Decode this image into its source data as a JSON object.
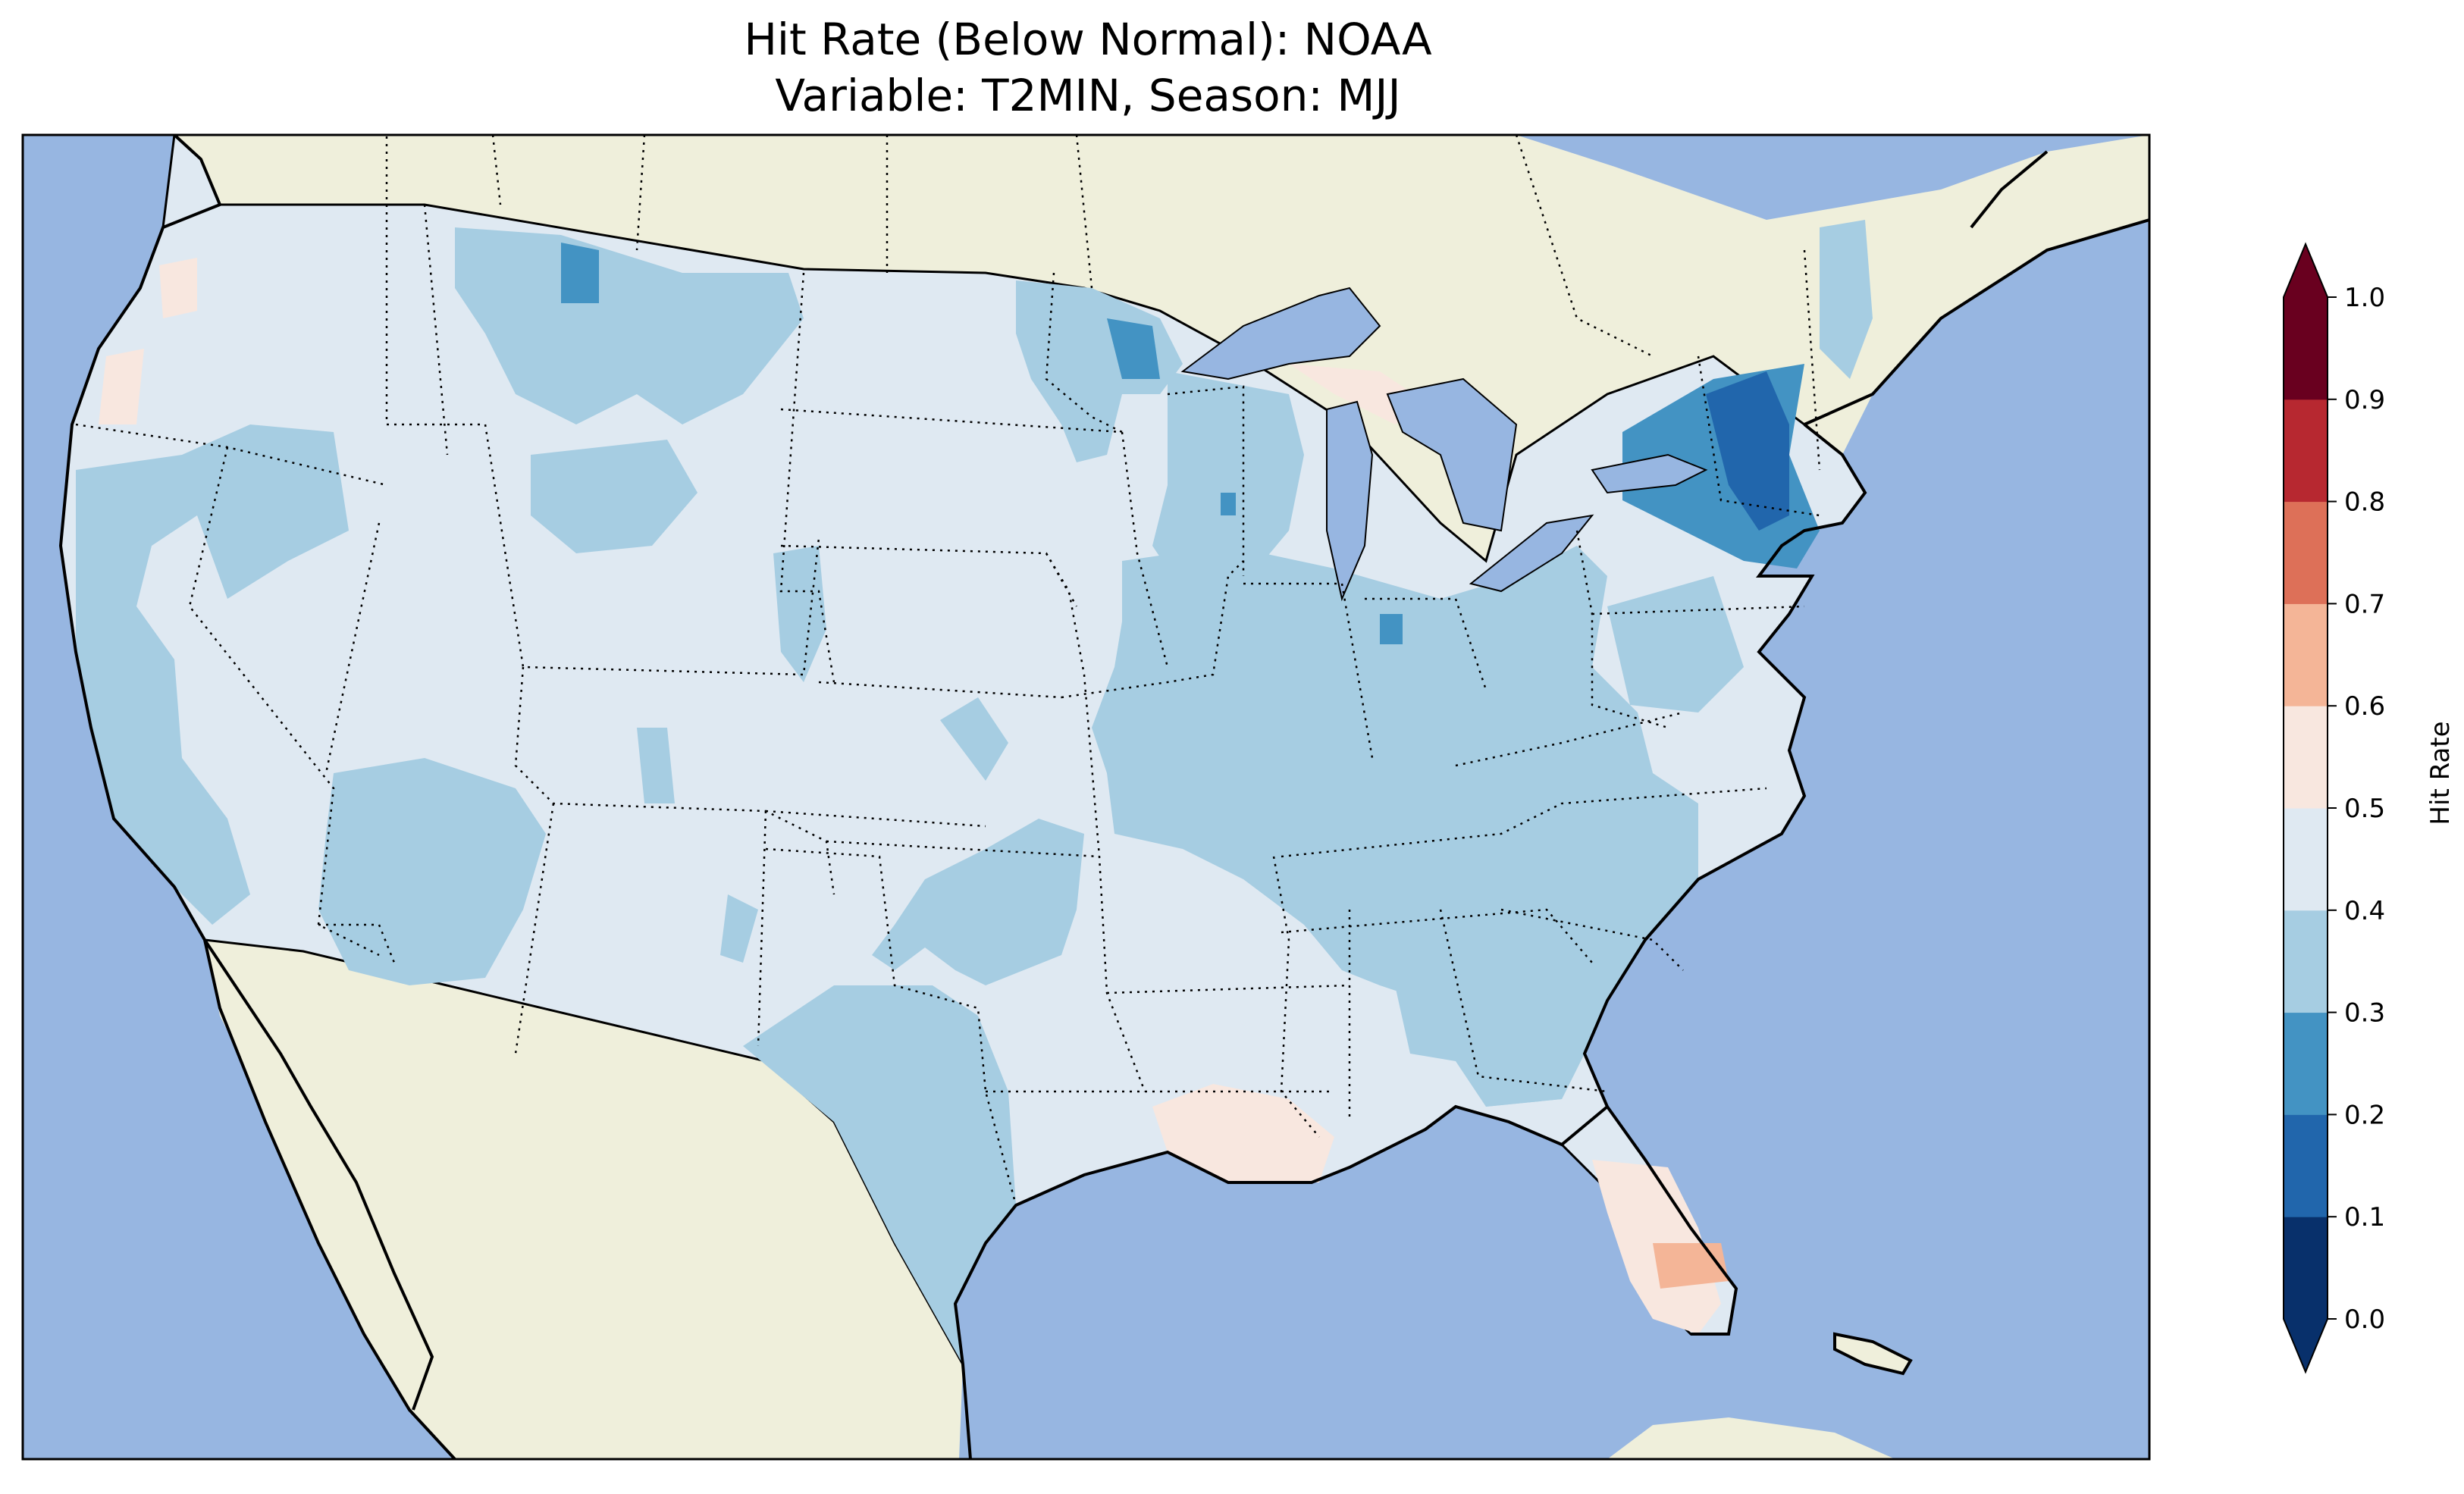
{
  "title": {
    "line1": "Hit Rate (Below Normal): NOAA",
    "line2": "Variable: T2MIN, Season: MJJ"
  },
  "colorbar": {
    "label": "Hit Rate",
    "ticks": [
      "0.0",
      "0.1",
      "0.2",
      "0.3",
      "0.4",
      "0.5",
      "0.6",
      "0.7",
      "0.8",
      "0.9",
      "1.0"
    ],
    "bins": [
      {
        "range": [
          0.0,
          0.1
        ],
        "color": "#08306b"
      },
      {
        "range": [
          0.1,
          0.2
        ],
        "color": "#2166ac"
      },
      {
        "range": [
          0.2,
          0.3
        ],
        "color": "#4393c3"
      },
      {
        "range": [
          0.3,
          0.4
        ],
        "color": "#a6cde2"
      },
      {
        "range": [
          0.4,
          0.5
        ],
        "color": "#dfe9f2"
      },
      {
        "range": [
          0.5,
          0.6
        ],
        "color": "#f8e7df"
      },
      {
        "range": [
          0.6,
          0.7
        ],
        "color": "#f4b597"
      },
      {
        "range": [
          0.7,
          0.8
        ],
        "color": "#dd7058"
      },
      {
        "range": [
          0.8,
          0.9
        ],
        "color": "#b72830"
      },
      {
        "range": [
          0.9,
          1.0
        ],
        "color": "#69001f"
      }
    ],
    "extend_low_color": "#08306b",
    "extend_high_color": "#69001f"
  },
  "map_colors": {
    "ocean": "#97b6e1",
    "land": "#efefdb",
    "coast": "#000000"
  }
}
